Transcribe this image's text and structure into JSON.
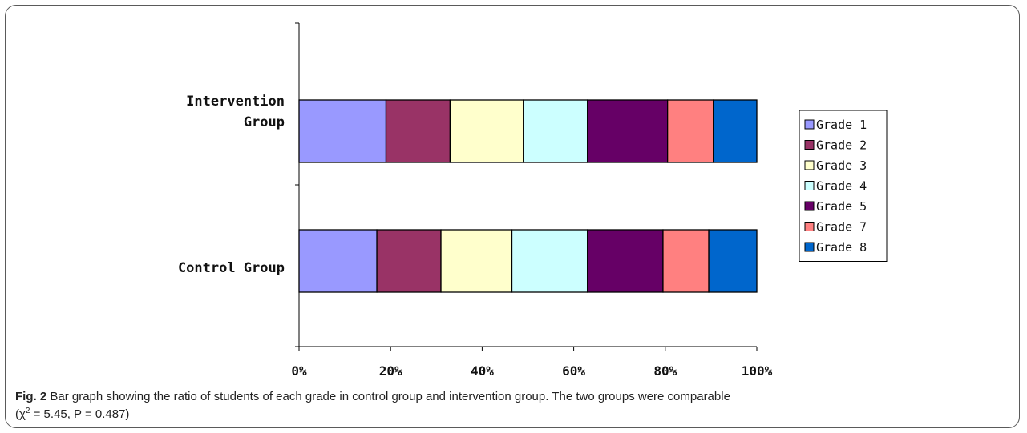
{
  "caption": {
    "fig_label": "Fig. 2",
    "line1": "Bar graph showing the ratio of students of each grade in control group and intervention group. The two groups were comparable",
    "line2_open": "(χ",
    "line2_sup": "2",
    "line2_rest": " = 5.45, P = 0.487)"
  },
  "chart_data": {
    "type": "bar",
    "orientation": "horizontal",
    "stacked": "percent",
    "categories": [
      {
        "key": "intervention",
        "lines": [
          "Intervention",
          "Group"
        ]
      },
      {
        "key": "control",
        "lines": [
          "Control Group"
        ]
      }
    ],
    "xlim": [
      0,
      100
    ],
    "xticks": [
      "0%",
      "20%",
      "40%",
      "60%",
      "80%",
      "100%"
    ],
    "grid": false,
    "legend_position": "right",
    "series": [
      {
        "name": "Grade 1",
        "color": "#9999FF",
        "values": [
          19,
          17
        ]
      },
      {
        "name": "Grade 2",
        "color": "#993366",
        "values": [
          14,
          14
        ]
      },
      {
        "name": "Grade 3",
        "color": "#FFFFCC",
        "values": [
          16,
          15.5
        ]
      },
      {
        "name": "Grade 4",
        "color": "#CCFFFF",
        "values": [
          14,
          16.5
        ]
      },
      {
        "name": "Grade 5",
        "color": "#660066",
        "values": [
          17.5,
          16.5
        ]
      },
      {
        "name": "Grade 7",
        "color": "#FF8080",
        "values": [
          10,
          10
        ]
      },
      {
        "name": "Grade 8",
        "color": "#0066CC",
        "values": [
          9.5,
          10.5
        ]
      }
    ]
  }
}
